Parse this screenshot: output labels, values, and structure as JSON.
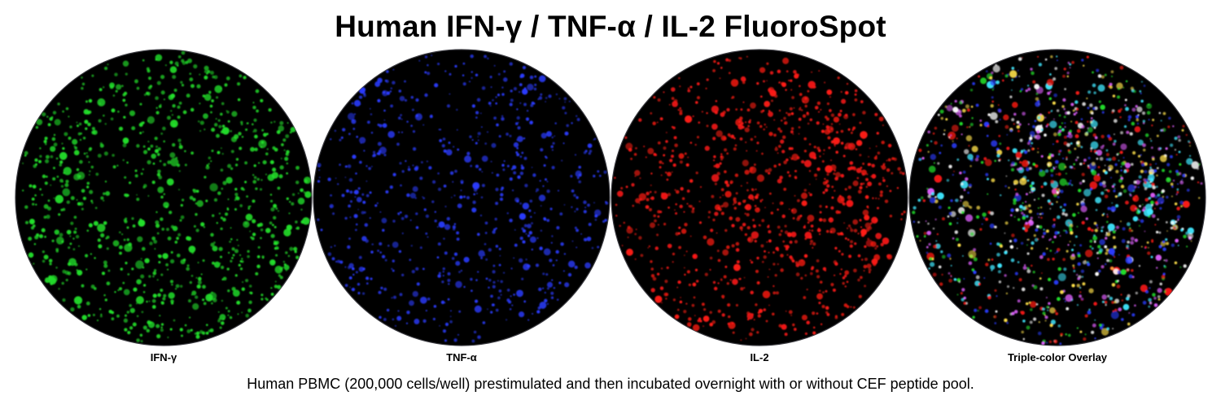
{
  "title": "Human IFN-γ / TNF-α / IL-2 FluoroSpot",
  "wells": [
    {
      "label": "IFN-γ",
      "spot_color": "#22e02a"
    },
    {
      "label": "TNF-α",
      "spot_color": "#2a3cff"
    },
    {
      "label": "IL-2",
      "spot_color": "#ff1a14"
    },
    {
      "label": "Triple-color Overlay",
      "spot_colors": [
        "#22e02a",
        "#2a3cff",
        "#ff1a14",
        "#ffe14a",
        "#e060ff",
        "#40e8ff",
        "#ffffff"
      ]
    }
  ],
  "caption": "Human PBMC (200,000 cells/well) prestimulated and then incubated overnight with or without CEF peptide pool."
}
